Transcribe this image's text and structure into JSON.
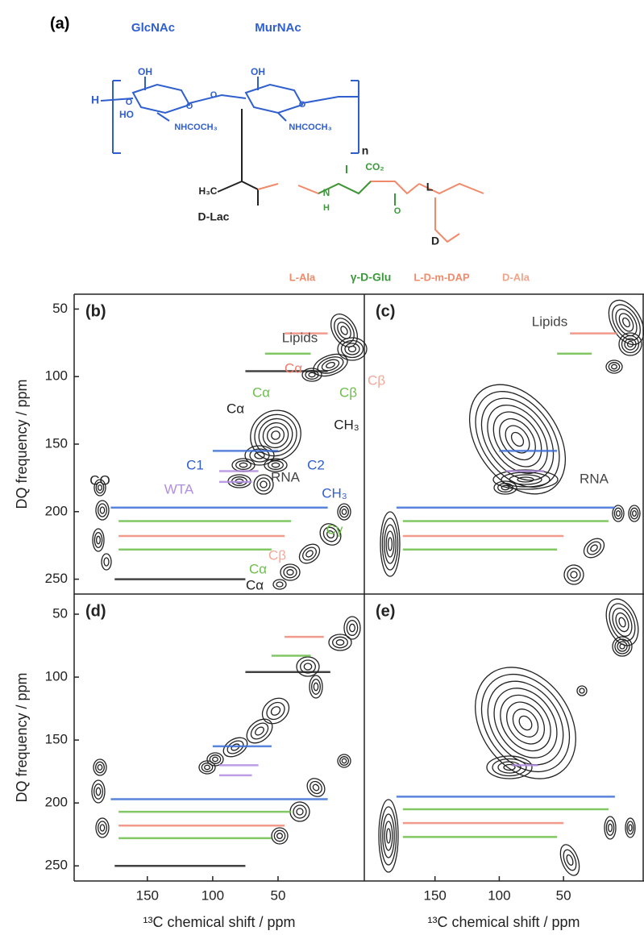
{
  "panel_a": {
    "label": "(a)",
    "labels": [
      {
        "text": "GlcNAc",
        "color": "#2f5fcf"
      },
      {
        "text": "MurNAc",
        "color": "#2f5fcf"
      },
      {
        "text": "H",
        "color": "#2f5fcf"
      },
      {
        "text": "OH",
        "color": "#2f5fcf"
      },
      {
        "text": "HO",
        "color": "#2f5fcf"
      },
      {
        "text": "O",
        "color": "#2f5fcf"
      },
      {
        "text": "O",
        "color": "#2f5fcf"
      },
      {
        "text": "NHCOCH₃",
        "color": "#2f5fcf"
      },
      {
        "text": "OH",
        "color": "#2f5fcf"
      },
      {
        "text": "O",
        "color": "#2f5fcf"
      },
      {
        "text": "O",
        "color": "#2f5fcf"
      },
      {
        "text": "NHCOCH₃",
        "color": "#2f5fcf"
      },
      {
        "text": "n",
        "color": "#222222"
      },
      {
        "text": "H₃C",
        "color": "#222222"
      },
      {
        "text": "D-Lac",
        "color": "#222222"
      },
      {
        "text": "CO₂",
        "color": "#3a9a3a"
      },
      {
        "text": "N",
        "color": "#3a9a3a"
      },
      {
        "text": "H",
        "color": "#3a9a3a"
      },
      {
        "text": "O",
        "color": "#3a9a3a"
      },
      {
        "text": "L",
        "color": "#222222"
      },
      {
        "text": "D",
        "color": "#222222"
      },
      {
        "text": "L-Ala",
        "color": "#f08a6a"
      },
      {
        "text": "γ-D-Glu",
        "color": "#3a9a3a"
      },
      {
        "text": "L-D-m-DAP",
        "color": "#f08a6a"
      },
      {
        "text": "D-Ala",
        "color": "#f0a58a"
      }
    ]
  },
  "spectra": {
    "y_label": "DQ frequency / ppm",
    "x_label": "¹³C chemical shift / ppm",
    "xticks": [
      150,
      100,
      50
    ],
    "yticks": [
      50,
      100,
      150,
      200,
      250
    ],
    "xlim": [
      [
        206,
        -16
      ],
      [
        205,
        -12
      ]
    ],
    "ylim": [
      [
        39,
        261
      ],
      [
        34,
        262
      ]
    ],
    "panels": [
      {
        "label": "(b)",
        "annotations": [
          {
            "text": "Lipids",
            "color": "#444444"
          },
          {
            "text": "Cα",
            "color": "#f07a6a"
          },
          {
            "text": "Cβ",
            "color": "#f5a898"
          },
          {
            "text": "Cα",
            "color": "#6cbf4a"
          },
          {
            "text": "Cβ",
            "color": "#6cbf4a"
          },
          {
            "text": "Cα",
            "color": "#222222"
          },
          {
            "text": "CH₃",
            "color": "#222222"
          },
          {
            "text": "C1",
            "color": "#2f5fcf"
          },
          {
            "text": "C2",
            "color": "#2f5fcf"
          },
          {
            "text": "RNA",
            "color": "#444444"
          },
          {
            "text": "WTA",
            "color": "#b28ee0"
          },
          {
            "text": "CO",
            "color": "#222222"
          },
          {
            "text": "CH₃",
            "color": "#2f5fcf"
          },
          {
            "text": "Cγ",
            "color": "#6cbf4a"
          },
          {
            "text": "Cβ",
            "color": "#f5a898"
          },
          {
            "text": "Cα",
            "color": "#6cbf4a"
          },
          {
            "text": "Cα",
            "color": "#222222"
          }
        ],
        "lines": [
          {
            "y": 197,
            "from": 178,
            "to": 12,
            "color": "#3d6fd6"
          },
          {
            "y": 207,
            "from": 172,
            "to": 40,
            "color": "#6cbf4a"
          },
          {
            "y": 218,
            "from": 172,
            "to": 45,
            "color": "#f08a7a"
          },
          {
            "y": 228,
            "from": 172,
            "to": 55,
            "color": "#6cbf4a"
          },
          {
            "y": 68,
            "from": 45,
            "to": 12,
            "color": "#f08a7a"
          },
          {
            "y": 83,
            "from": 60,
            "to": 25,
            "color": "#6cbf4a"
          },
          {
            "y": 96,
            "from": 75,
            "to": 12,
            "color": "#222222"
          },
          {
            "y": 155,
            "from": 100,
            "to": 50,
            "color": "#3d6fd6"
          },
          {
            "y": 170,
            "from": 95,
            "to": 65,
            "color": "#b28ee0"
          },
          {
            "y": 178,
            "from": 95,
            "to": 70,
            "color": "#b28ee0"
          },
          {
            "y": 250,
            "from": 175,
            "to": 75,
            "color": "#222222"
          }
        ]
      },
      {
        "label": "(c)",
        "annotations": [
          {
            "text": "Lipids",
            "color": "#444444"
          },
          {
            "text": "RNA",
            "color": "#444444"
          }
        ],
        "lines": [
          {
            "y": 197,
            "from": 180,
            "to": 10,
            "color": "#3d6fd6"
          },
          {
            "y": 207,
            "from": 175,
            "to": 15,
            "color": "#6cbf4a"
          },
          {
            "y": 218,
            "from": 175,
            "to": 50,
            "color": "#f08a7a"
          },
          {
            "y": 228,
            "from": 175,
            "to": 55,
            "color": "#6cbf4a"
          },
          {
            "y": 68,
            "from": 45,
            "to": 8,
            "color": "#f08a7a"
          },
          {
            "y": 83,
            "from": 55,
            "to": 28,
            "color": "#6cbf4a"
          },
          {
            "y": 155,
            "from": 100,
            "to": 55,
            "color": "#3d6fd6"
          },
          {
            "y": 170,
            "from": 95,
            "to": 65,
            "color": "#b28ee0"
          }
        ]
      },
      {
        "label": "(d)",
        "annotations": [],
        "lines": [
          {
            "y": 197,
            "from": 178,
            "to": 12,
            "color": "#3d6fd6"
          },
          {
            "y": 207,
            "from": 172,
            "to": 40,
            "color": "#6cbf4a"
          },
          {
            "y": 218,
            "from": 172,
            "to": 45,
            "color": "#f08a7a"
          },
          {
            "y": 228,
            "from": 172,
            "to": 55,
            "color": "#6cbf4a"
          },
          {
            "y": 68,
            "from": 45,
            "to": 15,
            "color": "#f08a7a"
          },
          {
            "y": 83,
            "from": 55,
            "to": 25,
            "color": "#6cbf4a"
          },
          {
            "y": 96,
            "from": 75,
            "to": 10,
            "color": "#222222"
          },
          {
            "y": 155,
            "from": 100,
            "to": 55,
            "color": "#3d6fd6"
          },
          {
            "y": 170,
            "from": 95,
            "to": 65,
            "color": "#b28ee0"
          },
          {
            "y": 178,
            "from": 95,
            "to": 70,
            "color": "#b28ee0"
          },
          {
            "y": 250,
            "from": 175,
            "to": 75,
            "color": "#222222"
          }
        ]
      },
      {
        "label": "(e)",
        "annotations": [],
        "lines": [
          {
            "y": 195,
            "from": 180,
            "to": 10,
            "color": "#3d6fd6"
          },
          {
            "y": 205,
            "from": 175,
            "to": 15,
            "color": "#6cbf4a"
          },
          {
            "y": 216,
            "from": 175,
            "to": 50,
            "color": "#f08a7a"
          },
          {
            "y": 227,
            "from": 175,
            "to": 55,
            "color": "#6cbf4a"
          },
          {
            "y": 170,
            "from": 90,
            "to": 70,
            "color": "#b28ee0"
          }
        ]
      }
    ]
  }
}
